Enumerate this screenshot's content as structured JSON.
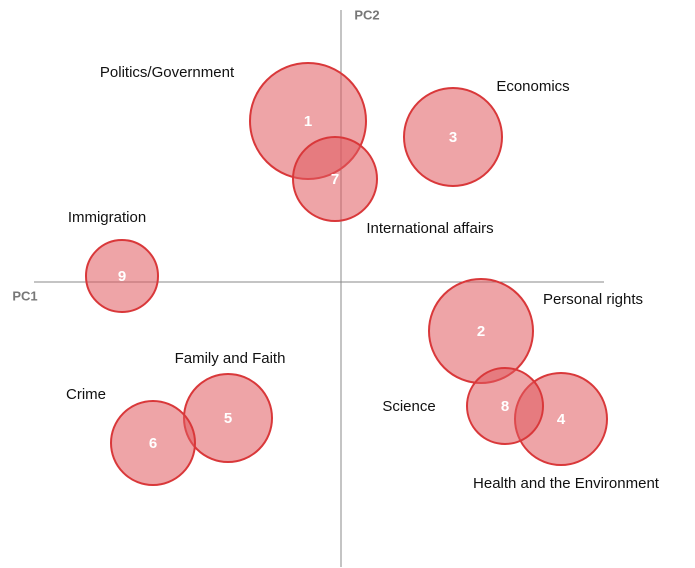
{
  "chart_data": {
    "type": "bubble",
    "x_label": "PC1",
    "y_label": "PC2",
    "labels": [
      "1",
      "2",
      "3",
      "4",
      "5",
      "6",
      "7",
      "8",
      "9"
    ],
    "names": [
      "Politics/Government",
      "Personal rights",
      "Economics",
      "Health and the Environment",
      "Family and Faith",
      "Crime",
      "International affairs",
      "Science",
      "Immigration"
    ],
    "x": [
      -0.33,
      1.4,
      1.12,
      2.2,
      -1.13,
      -1.88,
      -0.06,
      1.64,
      -2.19
    ],
    "y": [
      1.61,
      -0.49,
      1.45,
      -1.37,
      -1.36,
      -1.61,
      1.03,
      -1.24,
      0.06
    ],
    "sizes": [
      0.58,
      0.52,
      0.49,
      0.46,
      0.44,
      0.42,
      0.42,
      0.38,
      0.36
    ],
    "xlim": [
      -3.07,
      2.63
    ],
    "ylim": [
      -2.85,
      2.72
    ],
    "color": "#e05a5e",
    "edge_color": "#d9383a"
  }
}
